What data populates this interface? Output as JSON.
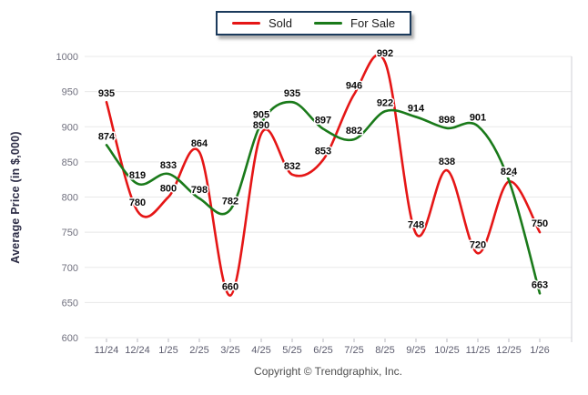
{
  "chart_data": {
    "type": "line",
    "title": "",
    "categories": [
      "11/24",
      "12/24",
      "1/25",
      "2/25",
      "3/25",
      "4/25",
      "5/25",
      "6/25",
      "7/25",
      "8/25",
      "9/25",
      "10/25",
      "11/25",
      "12/25",
      "1/26"
    ],
    "series": [
      {
        "name": "Sold",
        "color": "#e51616",
        "values": [
          935,
          780,
          800,
          864,
          660,
          890,
          832,
          853,
          946,
          992,
          748,
          838,
          720,
          822,
          750
        ]
      },
      {
        "name": "For Sale",
        "color": "#1a7a1a",
        "values": [
          874,
          819,
          833,
          798,
          782,
          905,
          935,
          897,
          882,
          922,
          914,
          898,
          901,
          824,
          663
        ]
      }
    ],
    "xlabel": "",
    "ylabel": "Average Price (in $,000)",
    "ylim": [
      600,
      1000
    ],
    "yticks": [
      600,
      650,
      700,
      750,
      800,
      850,
      900,
      950,
      1000
    ],
    "grid": "horizontal",
    "legend_position": "top-center",
    "data_labels": true
  },
  "legend": {
    "items": [
      {
        "label": "Sold",
        "color": "#e51616"
      },
      {
        "label": "For Sale",
        "color": "#1a7a1a"
      }
    ]
  },
  "footer": {
    "copyright": "Copyright © Trendgraphix, Inc."
  },
  "colors": {
    "gridline": "#e8e8e8",
    "axis_tick": "#b9b9c2",
    "plot_border": "#cfcfd6"
  }
}
